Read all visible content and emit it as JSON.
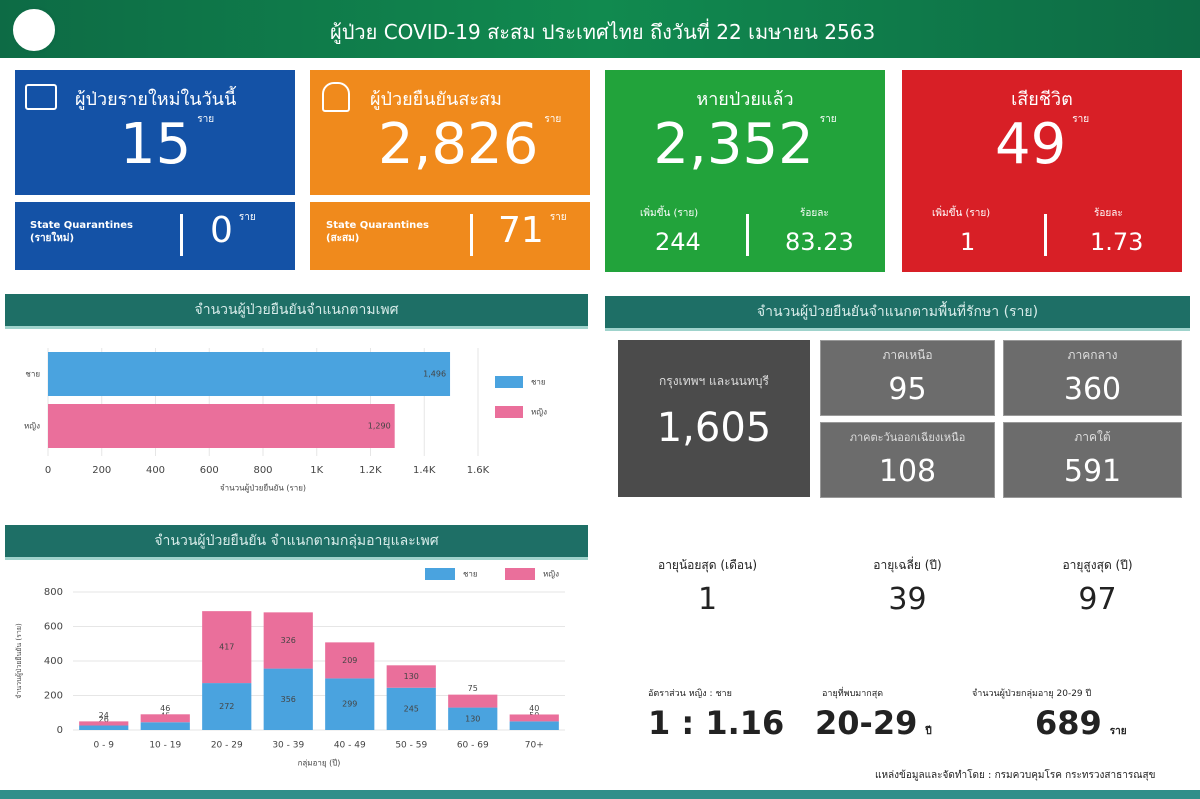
{
  "header": {
    "title": "ผู้ป่วย COVID-19 สะสม  ประเทศไทย ถึงวันที่ 22 เมษายน 2563"
  },
  "cards": [
    {
      "title": "ผู้ป่วยรายใหม่ในวันนี้",
      "value": "15",
      "unit": "ราย",
      "sub_label": "State Quarantines (รายใหม่)",
      "sub_value": "0",
      "sub_unit": "ราย"
    },
    {
      "title": "ผู้ป่วยยืนยันสะสม",
      "value": "2,826",
      "unit": "ราย",
      "sub_label": "State Quarantines (สะสม)",
      "sub_value": "71",
      "sub_unit": "ราย"
    },
    {
      "title": "หายป่วยแล้ว",
      "value": "2,352",
      "unit": "ราย",
      "left_label": "เพิ่มขึ้น (ราย)",
      "left_value": "244",
      "right_label": "ร้อยละ",
      "right_value": "83.23"
    },
    {
      "title": "เสียชีวิต",
      "value": "49",
      "unit": "ราย",
      "left_label": "เพิ่มขึ้น (ราย)",
      "left_value": "1",
      "right_label": "ร้อยละ",
      "right_value": "1.73"
    }
  ],
  "regions": {
    "title": "จำนวนผู้ป่วยยืนยันจำแนกตามพื้นที่รักษา (ราย)",
    "items": [
      {
        "name": "กรุงเทพฯ และนนทบุรี",
        "value": "1,605"
      },
      {
        "name": "ภาคเหนือ",
        "value": "95"
      },
      {
        "name": "ภาคกลาง",
        "value": "360"
      },
      {
        "name": "ภาคตะวันออกเฉียงเหนือ",
        "value": "108"
      },
      {
        "name": "ภาคใต้",
        "value": "591"
      }
    ]
  },
  "stats": [
    {
      "label": "อายุน้อยสุด (เดือน)",
      "value": "1"
    },
    {
      "label": "อายุเฉลี่ย (ปี)",
      "value": "39"
    },
    {
      "label": "อายุสูงสุด (ปี)",
      "value": "97"
    },
    {
      "label": "อัตราส่วน หญิง : ชาย",
      "value": "1 : 1.16"
    },
    {
      "label": "อายุที่พบมากสุด",
      "value": "20-29",
      "unit": "ปี"
    },
    {
      "label": "จำนวนผู้ป่วยกลุ่มอายุ 20-29 ปี",
      "value": "689",
      "unit": "ราย"
    }
  ],
  "footer": {
    "source": "แหล่งข้อมูลและจัดทำโดย : กรมควบคุมโรค กระทรวงสาธารณสุข"
  },
  "chart_data": [
    {
      "type": "bar",
      "orientation": "horizontal",
      "title": "จำนวนผู้ป่วยยืนยันจำแนกตามเพศ",
      "categories": [
        "ชาย",
        "หญิง"
      ],
      "values": [
        1496,
        1290
      ],
      "value_labels": [
        "1,496",
        "1,290"
      ],
      "colors": [
        "#4aa3df",
        "#ea6f9b"
      ],
      "xlabel": "จำนวนผู้ป่วยยืนยัน (ราย)",
      "xlim": [
        0,
        1600
      ],
      "xticks": [
        0,
        200,
        400,
        600,
        800,
        {
          "value": 1000,
          "label": "1K"
        },
        {
          "value": 1200,
          "label": "1.2K"
        },
        {
          "value": 1400,
          "label": "1.4K"
        },
        {
          "value": 1600,
          "label": "1.6K"
        }
      ],
      "grid": true
    },
    {
      "type": "bar",
      "stacked": true,
      "title": "จำนวนผู้ป่วยยืนยัน จำแนกตามกลุ่มอายุและเพศ",
      "categories": [
        "0 - 9",
        "10 - 19",
        "20 - 29",
        "30 - 39",
        "40 - 49",
        "50 - 59",
        "60 - 69",
        "70+"
      ],
      "series": [
        {
          "name": "ชาย",
          "color": "#4aa3df",
          "values": [
            26,
            45,
            272,
            356,
            299,
            245,
            130,
            50
          ]
        },
        {
          "name": "หญิง",
          "color": "#ea6f9b",
          "values": [
            24,
            46,
            417,
            326,
            209,
            130,
            75,
            40
          ]
        }
      ],
      "xlabel": "กลุ่มอายุ (ปี)",
      "ylabel": "จำนวนผู้ป่วยยืนยัน (ราย)",
      "ylim": [
        0,
        800
      ],
      "yticks": [
        0,
        200,
        400,
        600,
        800
      ],
      "grid": true
    }
  ]
}
